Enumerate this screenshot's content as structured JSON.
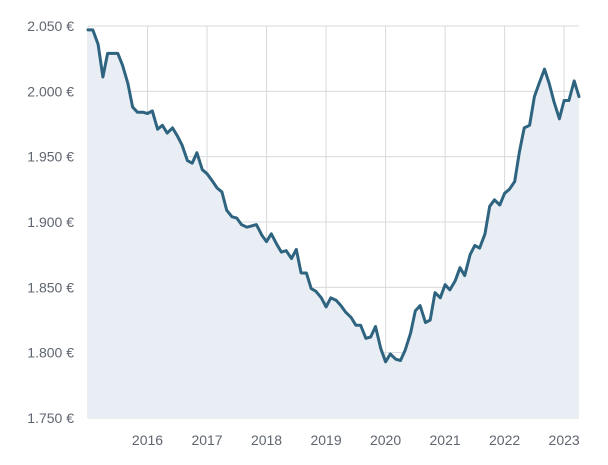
{
  "chart_data": {
    "type": "area",
    "title": "",
    "xlabel": "",
    "ylabel": "",
    "y_tick_labels": [
      "1.750 €",
      "1.800 €",
      "1.850 €",
      "1.900 €",
      "1.950 €",
      "2.000 €",
      "2.050 €"
    ],
    "y_ticks": [
      1750,
      1800,
      1850,
      1900,
      1950,
      2000,
      2050
    ],
    "x_tick_labels": [
      "2016",
      "2017",
      "2018",
      "2019",
      "2020",
      "2021",
      "2022",
      "2023"
    ],
    "x_ticks": [
      2016,
      2017,
      2018,
      2019,
      2020,
      2021,
      2022,
      2023
    ],
    "xlim": [
      2015.0,
      2023.25
    ],
    "ylim": [
      1750,
      2050
    ],
    "grid": true,
    "colors": {
      "line": "#2e6480",
      "area": "#e9eef4",
      "grid": "#d7d9dd"
    },
    "series": [
      {
        "x": [
          2015.0,
          2015.08,
          2015.17,
          2015.25,
          2015.33,
          2015.42,
          2015.5,
          2015.58,
          2015.67,
          2015.75,
          2015.83,
          2015.92,
          2016.0,
          2016.08,
          2016.17,
          2016.25,
          2016.33,
          2016.42,
          2016.5,
          2016.58,
          2016.67,
          2016.75,
          2016.83,
          2016.92,
          2017.0,
          2017.08,
          2017.17,
          2017.25,
          2017.33,
          2017.42,
          2017.5,
          2017.58,
          2017.67,
          2017.75,
          2017.83,
          2017.92,
          2018.0,
          2018.08,
          2018.17,
          2018.25,
          2018.33,
          2018.42,
          2018.5,
          2018.58,
          2018.67,
          2018.75,
          2018.83,
          2018.92,
          2019.0,
          2019.08,
          2019.17,
          2019.25,
          2019.33,
          2019.42,
          2019.5,
          2019.58,
          2019.67,
          2019.75,
          2019.83,
          2019.92,
          2020.0,
          2020.08,
          2020.17,
          2020.25,
          2020.33,
          2020.42,
          2020.5,
          2020.58,
          2020.67,
          2020.75,
          2020.83,
          2020.92,
          2021.0,
          2021.08,
          2021.17,
          2021.25,
          2021.33,
          2021.42,
          2021.5,
          2021.58,
          2021.67,
          2021.75,
          2021.83,
          2021.92,
          2022.0,
          2022.08,
          2022.17,
          2022.25,
          2022.33,
          2022.42,
          2022.5,
          2022.58,
          2022.67,
          2022.75,
          2022.83,
          2022.92,
          2023.0,
          2023.08,
          2023.17,
          2023.25
        ],
        "values": [
          2047,
          2047,
          2036,
          2011,
          2029,
          2029,
          2029,
          2020,
          2006,
          1988,
          1984,
          1984,
          1983,
          1985,
          1971,
          1974,
          1968,
          1972,
          1966,
          1959,
          1947,
          1945,
          1953,
          1940,
          1937,
          1932,
          1926,
          1923,
          1909,
          1904,
          1903,
          1898,
          1896,
          1897,
          1898,
          1890,
          1885,
          1891,
          1883,
          1877,
          1878,
          1872,
          1879,
          1861,
          1861,
          1849,
          1847,
          1842,
          1835,
          1842,
          1840,
          1836,
          1831,
          1827,
          1821,
          1821,
          1811,
          1812,
          1820,
          1803,
          1793,
          1799,
          1795,
          1794,
          1802,
          1815,
          1832,
          1836,
          1823,
          1825,
          1846,
          1842,
          1852,
          1848,
          1855,
          1865,
          1859,
          1875,
          1882,
          1880,
          1891,
          1912,
          1917,
          1913,
          1922,
          1925,
          1931,
          1954,
          1972,
          1974,
          1996,
          2006,
          2017,
          2006,
          1992,
          1979,
          1993,
          1993,
          2008,
          1996
        ]
      }
    ]
  }
}
